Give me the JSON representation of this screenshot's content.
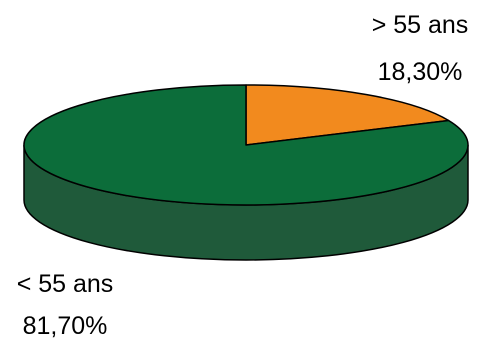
{
  "chart_data": {
    "type": "pie",
    "style": "3d",
    "title": "",
    "legend": "none",
    "slices": [
      {
        "key": "older",
        "category": "> 55 ans",
        "value": 18.3,
        "value_label": "18,30%",
        "color": "#F28A1E",
        "side_color": "#B85E0F"
      },
      {
        "key": "younger",
        "category": "< 55 ans",
        "value": 81.7,
        "value_label": "81,70%",
        "color": "#0C6D3A",
        "side_color": "#1F5A3A"
      }
    ]
  }
}
